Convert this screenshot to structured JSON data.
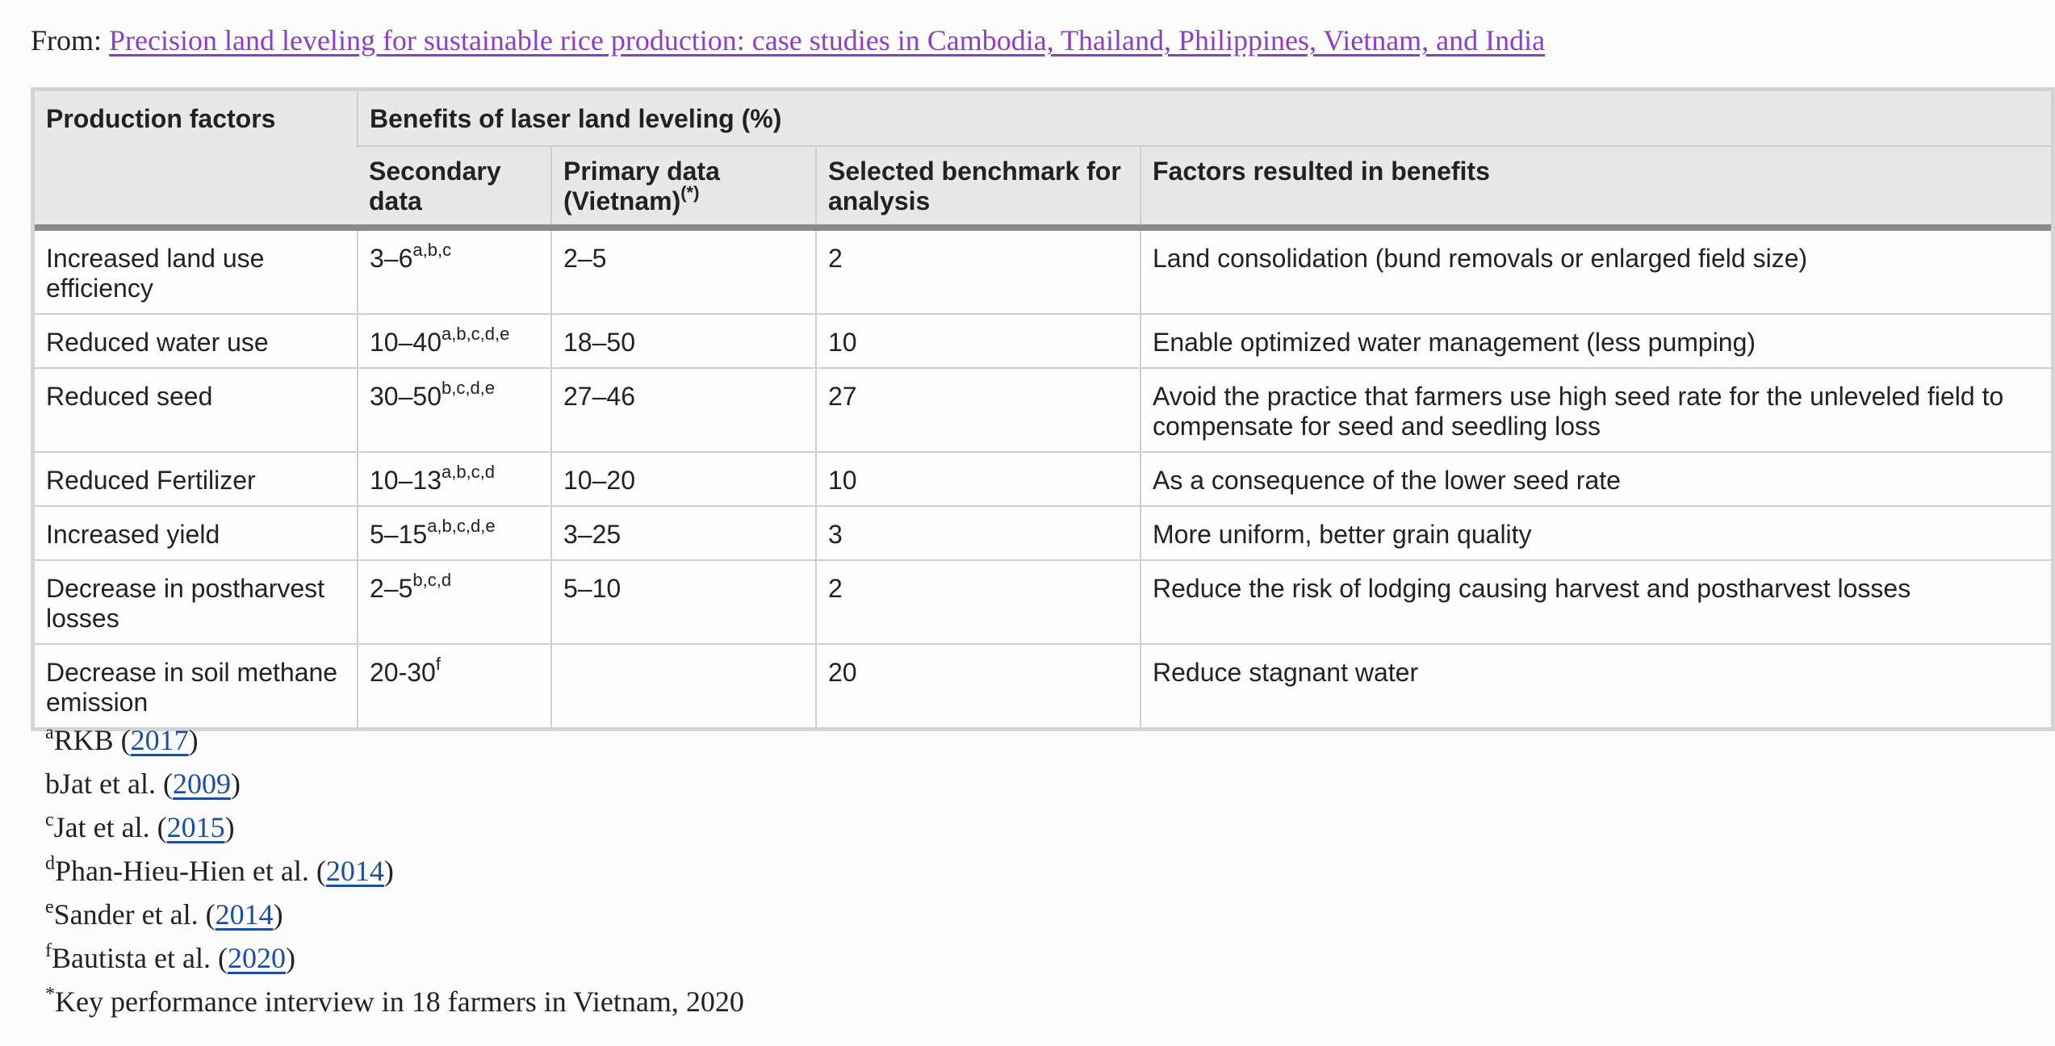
{
  "source": {
    "prefix": "From: ",
    "link_text": "Precision land leveling for sustainable rice production: case studies in Cambodia, Thailand, Philippines, Vietnam, and India",
    "link_color": "#8e3fbf"
  },
  "table": {
    "headers": {
      "production_factors": "Production factors",
      "group": "Benefits of laser land leveling (%)",
      "secondary": "Secondary data",
      "primary": "Primary data (Vietnam)",
      "primary_sup": "(*)",
      "benchmark": "Selected benchmark for analysis",
      "factors": "Factors resulted in benefits"
    },
    "rows": [
      {
        "factor": "Increased land use efficiency",
        "secondary": "3–6",
        "secondary_sup": "a,b,c",
        "primary": "2–5",
        "benchmark": "2",
        "benefit": "Land consolidation (bund removals or enlarged field size)"
      },
      {
        "factor": "Reduced water use",
        "secondary": "10–40",
        "secondary_sup": "a,b,c,d,e",
        "primary": "18–50",
        "benchmark": "10",
        "benefit": "Enable optimized water management (less pumping)"
      },
      {
        "factor": "Reduced seed",
        "secondary": "30–50",
        "secondary_sup": "b,c,d,e",
        "primary": "27–46",
        "benchmark": "27",
        "benefit": "Avoid the practice that farmers use high seed rate for the unleveled field to compensate for seed and seedling loss"
      },
      {
        "factor": "Reduced Fertilizer",
        "secondary": "10–13",
        "secondary_sup": "a,b,c,d",
        "primary": "10–20",
        "benchmark": "10",
        "benefit": "As a consequence of the lower seed rate"
      },
      {
        "factor": "Increased yield",
        "secondary": "5–15",
        "secondary_sup": "a,b,c,d,e",
        "primary": "3–25",
        "benchmark": "3",
        "benefit": "More uniform, better grain quality"
      },
      {
        "factor": "Decrease in postharvest losses",
        "secondary": "2–5",
        "secondary_sup": "b,c,d",
        "primary": "5–10",
        "benchmark": "2",
        "benefit": "Reduce the risk of lodging causing harvest and postharvest losses"
      },
      {
        "factor": "Decrease in soil methane emission",
        "secondary": "20-30",
        "secondary_sup": "f",
        "primary": "",
        "benchmark": "20",
        "benefit": "Reduce stagnant water"
      }
    ]
  },
  "footnotes": [
    {
      "mark": "a",
      "before": "RKB (",
      "year": "2017",
      "after": ")",
      "superscript": true
    },
    {
      "mark": "b",
      "before": "Jat et al. (",
      "year": "2009",
      "after": ")",
      "superscript": false
    },
    {
      "mark": "c",
      "before": "Jat et al. (",
      "year": "2015",
      "after": ")",
      "superscript": true
    },
    {
      "mark": "d",
      "before": "Phan-Hieu-Hien et al. (",
      "year": "2014",
      "after": ")",
      "superscript": true
    },
    {
      "mark": "e",
      "before": "Sander et al. (",
      "year": "2014",
      "after": ")",
      "superscript": true
    },
    {
      "mark": "f",
      "before": "Bautista et al. (",
      "year": "2020",
      "after": ")",
      "superscript": true
    }
  ],
  "final_note": {
    "mark": "*",
    "text": "Key performance interview in 18 farmers in Vietnam, 2020"
  }
}
